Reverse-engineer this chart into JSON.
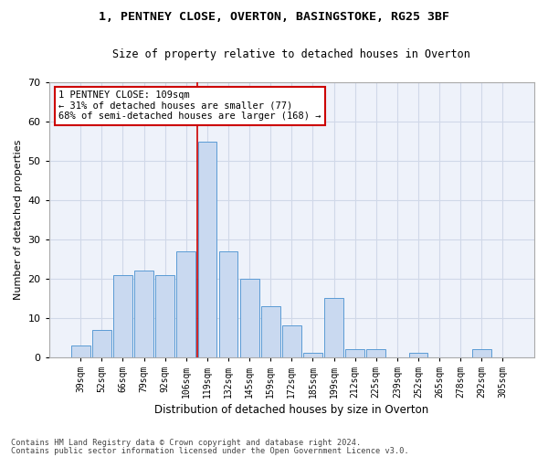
{
  "title1": "1, PENTNEY CLOSE, OVERTON, BASINGSTOKE, RG25 3BF",
  "title2": "Size of property relative to detached houses in Overton",
  "xlabel": "Distribution of detached houses by size in Overton",
  "ylabel": "Number of detached properties",
  "categories": [
    "39sqm",
    "52sqm",
    "66sqm",
    "79sqm",
    "92sqm",
    "106sqm",
    "119sqm",
    "132sqm",
    "145sqm",
    "159sqm",
    "172sqm",
    "185sqm",
    "199sqm",
    "212sqm",
    "225sqm",
    "239sqm",
    "252sqm",
    "265sqm",
    "278sqm",
    "292sqm",
    "305sqm"
  ],
  "values": [
    3,
    7,
    21,
    22,
    21,
    27,
    55,
    27,
    20,
    13,
    8,
    1,
    15,
    2,
    2,
    0,
    1,
    0,
    0,
    2,
    0
  ],
  "bar_color": "#c9d9f0",
  "bar_edge_color": "#5b9bd5",
  "grid_color": "#d0d8e8",
  "background_color": "#eef2fa",
  "vline_index": 5.54,
  "annotation_text": "1 PENTNEY CLOSE: 109sqm\n← 31% of detached houses are smaller (77)\n68% of semi-detached houses are larger (168) →",
  "annotation_box_color": "#ffffff",
  "annotation_box_edge": "#cc0000",
  "vline_color": "#cc0000",
  "ylim": [
    0,
    70
  ],
  "yticks": [
    0,
    10,
    20,
    30,
    40,
    50,
    60,
    70
  ],
  "footer1": "Contains HM Land Registry data © Crown copyright and database right 2024.",
  "footer2": "Contains public sector information licensed under the Open Government Licence v3.0."
}
